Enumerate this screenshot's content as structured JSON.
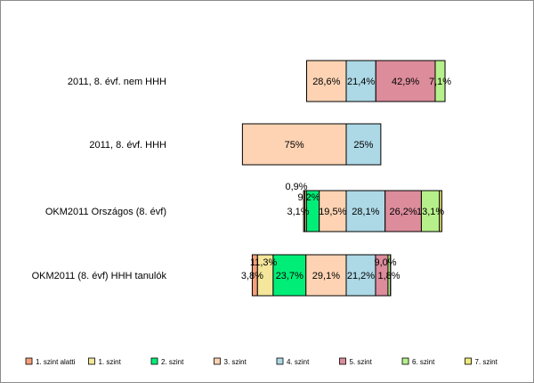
{
  "chart_data": {
    "type": "bar",
    "orientation": "horizontal",
    "stacked": true,
    "centered": true,
    "categories": [
      "2011, 8. évf. nem HHH",
      "2011, 8. évf. HHH",
      "OKM2011 Országos (8. évf)",
      "OKM2011 (8. évf) HHH tanulók"
    ],
    "series": [
      {
        "name": "1. szint alatti",
        "color": "#f4a07a",
        "values": [
          0,
          0,
          0.9,
          3.8
        ],
        "labels": [
          "",
          "",
          "0,9%",
          "3,8%"
        ]
      },
      {
        "name": "1. szint",
        "color": "#f4e69a",
        "values": [
          0,
          0,
          1.2,
          11.3
        ],
        "labels": [
          "",
          "",
          "",
          "11,3%"
        ]
      },
      {
        "name": "2. szint",
        "color": "#00ee77",
        "values": [
          0,
          0,
          9.2,
          23.7
        ],
        "labels": [
          "",
          "",
          "9,2%",
          "23,7%"
        ]
      },
      {
        "name": "3. szint",
        "color": "#fdd3b3",
        "values": [
          28.6,
          75,
          19.5,
          29.1
        ],
        "labels": [
          "28,6%",
          "75%",
          "19,5%",
          "29,1%"
        ]
      },
      {
        "name": "4. szint",
        "color": "#add8e6",
        "values": [
          21.4,
          25,
          28.1,
          21.2
        ],
        "labels": [
          "21,4%",
          "25%",
          "28,1%",
          "21,2%"
        ]
      },
      {
        "name": "5. szint",
        "color": "#dc8c9b",
        "values": [
          42.9,
          0,
          26.2,
          9.0
        ],
        "labels": [
          "42,9%",
          "",
          "26,2%",
          "9,0%"
        ]
      },
      {
        "name": "6. szint",
        "color": "#b6f08a",
        "values": [
          7.1,
          0,
          13.1,
          1.8
        ],
        "labels": [
          "7,1%",
          "",
          "13,1%",
          "1,8%"
        ]
      },
      {
        "name": "7. szint",
        "color": "#f0ea7a",
        "values": [
          0,
          0,
          1.7,
          0.1
        ],
        "labels": [
          "",
          "",
          "",
          ""
        ]
      }
    ],
    "extra_labels": [
      {
        "category": 2,
        "text": "3,1%"
      }
    ],
    "legend": "bottom",
    "grid": false
  }
}
